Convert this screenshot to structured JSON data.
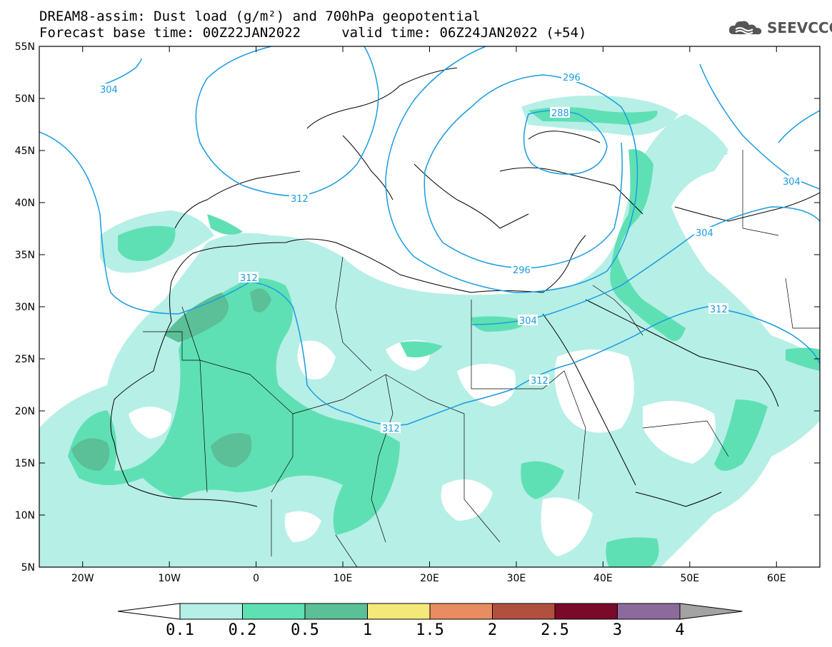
{
  "header": {
    "line1": "DREAM8-assim: Dust load (g/m²) and 700hPa geopotential",
    "line2": "Forecast base time: 00Z22JAN2022     valid time: 06Z24JAN2022 (+54)",
    "logo_text": "SEEVCCC"
  },
  "map": {
    "lat_labels": [
      "55N",
      "50N",
      "45N",
      "40N",
      "35N",
      "30N",
      "25N",
      "20N",
      "15N",
      "10N",
      "5N"
    ],
    "lon_labels": [
      "20W",
      "10W",
      "0",
      "10E",
      "20E",
      "30E",
      "40E",
      "50E",
      "60E"
    ],
    "lat_range": [
      5,
      55
    ],
    "lon_range": [
      -25,
      65
    ],
    "contour_labels": [
      "304",
      "296",
      "288",
      "312",
      "304",
      "304",
      "296",
      "304",
      "312",
      "312",
      "312",
      "312"
    ],
    "contour_color": "#1a9be0"
  },
  "colorbar": {
    "levels": [
      "0.1",
      "0.2",
      "0.5",
      "1",
      "1.5",
      "2",
      "2.5",
      "3",
      "4"
    ],
    "colors": [
      "#b6efe6",
      "#5fe0b4",
      "#5bbf98",
      "#f3e879",
      "#e88c61",
      "#b2503e",
      "#7a0a2a",
      "#8c6b9c",
      "#a3a3a3"
    ],
    "under_color": "#ffffff"
  }
}
